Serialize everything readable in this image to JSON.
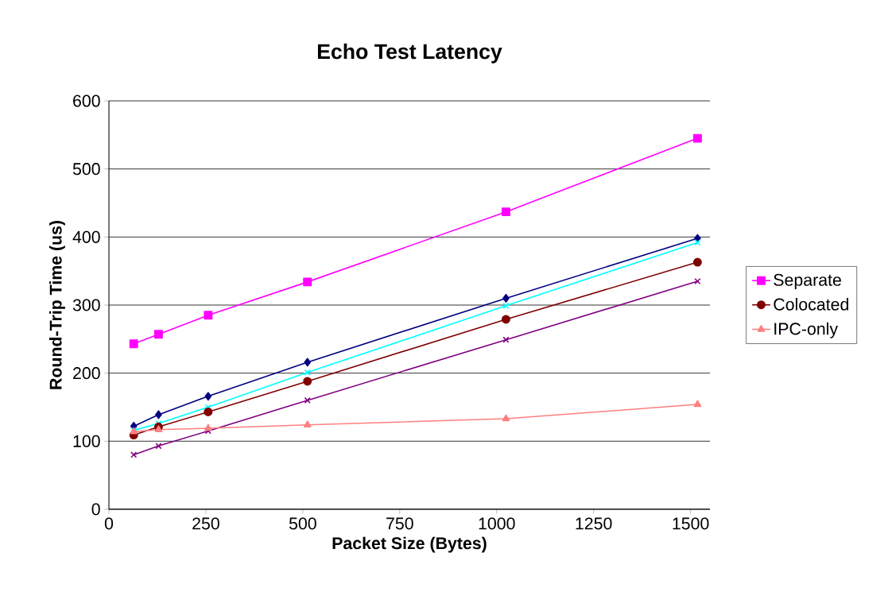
{
  "chart_data": {
    "type": "line",
    "title": "Echo Test Latency",
    "xlabel": "Packet Size (Bytes)",
    "ylabel": "Round-Trip Time (us)",
    "x": [
      64,
      128,
      256,
      512,
      1024,
      1518
    ],
    "series": [
      {
        "name": "Separate",
        "color": "#ff00ff",
        "marker": "square",
        "values": [
          243,
          257,
          285,
          334,
          437,
          545
        ]
      },
      {
        "color": "#000080",
        "marker": "diamond",
        "values": [
          122,
          139,
          166,
          216,
          310,
          398
        ]
      },
      {
        "color": "#00ffff",
        "marker": "cross",
        "values": [
          116,
          126,
          150,
          201,
          299,
          392
        ]
      },
      {
        "name": "Colocated",
        "color": "#800000",
        "marker": "circle",
        "values": [
          109,
          121,
          143,
          188,
          279,
          363
        ]
      },
      {
        "color": "#800080",
        "marker": "cross",
        "values": [
          80,
          93,
          115,
          160,
          249,
          335
        ]
      },
      {
        "name": "IPC-only",
        "color": "#ff8080",
        "marker": "triangle",
        "values": [
          114,
          117,
          119,
          124,
          133,
          154
        ]
      }
    ],
    "xlim": [
      0,
      1550
    ],
    "xticks": [
      0,
      250,
      500,
      750,
      1000,
      1250,
      1500
    ],
    "ylim": [
      0,
      600
    ],
    "yticks": [
      0,
      100,
      200,
      300,
      400,
      500,
      600
    ],
    "grid": "y",
    "legend": "right",
    "line_style": "solid"
  }
}
